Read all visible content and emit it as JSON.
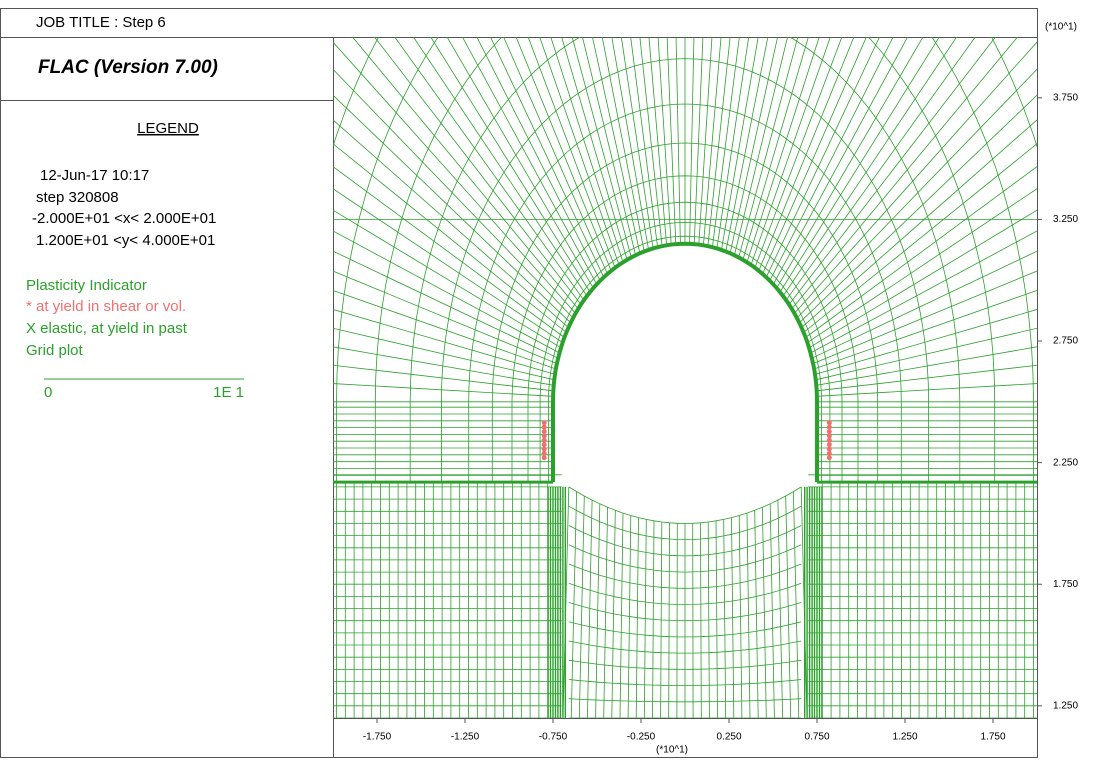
{
  "header": {
    "title": "JOB TITLE : Step 6",
    "program": "FLAC (Version 7.00)"
  },
  "legend": {
    "title": "LEGEND",
    "date": "12-Jun-17  10:17",
    "step": "step    320808",
    "xrange": "-2.000E+01 <x<  2.000E+01",
    "yrange": "1.200E+01 <y<  4.000E+01",
    "items": [
      "Plasticity Indicator",
      "* at yield in shear or vol.",
      "X elastic, at yield in past",
      "Grid plot"
    ],
    "scale_start": "0",
    "scale_end": "1E 1"
  },
  "axes": {
    "scale_label_y": "(*10^1)",
    "scale_label_x": "(*10^1)",
    "xlim": [
      -2.0,
      2.0
    ],
    "ylim": [
      1.2,
      4.0
    ],
    "xticks": [
      {
        "value": -1.75,
        "label": "-1.750"
      },
      {
        "value": -1.25,
        "label": "-1.250"
      },
      {
        "value": -0.75,
        "label": "-0.750"
      },
      {
        "value": -0.25,
        "label": "-0.250"
      },
      {
        "value": 0.25,
        "label": "0.250"
      },
      {
        "value": 0.75,
        "label": "0.750"
      },
      {
        "value": 1.25,
        "label": "1.250"
      },
      {
        "value": 1.75,
        "label": "1.750"
      }
    ],
    "yticks": [
      {
        "value": 1.25,
        "label": "1.250"
      },
      {
        "value": 1.75,
        "label": "1.750"
      },
      {
        "value": 2.25,
        "label": "2.250"
      },
      {
        "value": 2.75,
        "label": "2.750"
      },
      {
        "value": 3.25,
        "label": "3.250"
      },
      {
        "value": 3.75,
        "label": "3.750"
      }
    ]
  }
}
